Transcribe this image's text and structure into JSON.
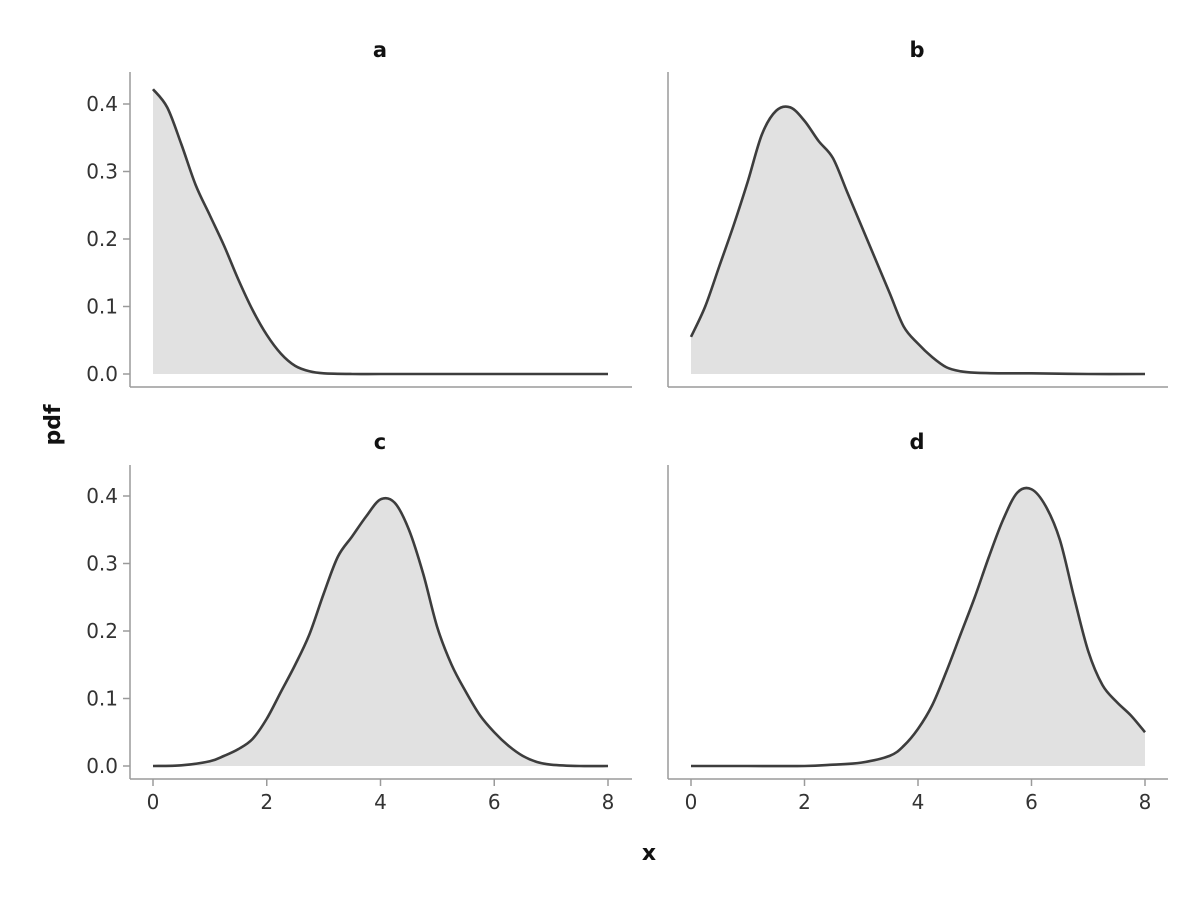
{
  "chart_data": {
    "type": "area",
    "xlabel": "x",
    "ylabel": "pdf",
    "xlim": [
      0,
      8
    ],
    "ylim": [
      0,
      0.43
    ],
    "xticks": [
      0,
      2,
      4,
      6,
      8
    ],
    "yticks": [
      0.0,
      0.1,
      0.2,
      0.3,
      0.4
    ],
    "ytick_labels": [
      "0.0",
      "0.1",
      "0.2",
      "0.3",
      "0.4"
    ],
    "grid": false,
    "fill_color": "#e1e1e1",
    "line_color": "#3d3d3d",
    "panels": [
      {
        "title": "a",
        "x": [
          0,
          0.25,
          0.5,
          0.75,
          1.0,
          1.25,
          1.5,
          1.75,
          2.0,
          2.25,
          2.5,
          2.75,
          3.0,
          3.5,
          4.0,
          5.0,
          6.0,
          7.0,
          8.0
        ],
        "y": [
          0.422,
          0.395,
          0.34,
          0.28,
          0.235,
          0.19,
          0.14,
          0.095,
          0.058,
          0.03,
          0.012,
          0.004,
          0.001,
          0.0,
          0.0,
          0.0,
          0.0,
          0.0,
          0.0
        ]
      },
      {
        "title": "b",
        "x": [
          0,
          0.25,
          0.5,
          0.75,
          1.0,
          1.25,
          1.5,
          1.75,
          2.0,
          2.25,
          2.5,
          2.75,
          3.0,
          3.25,
          3.5,
          3.75,
          4.0,
          4.25,
          4.5,
          4.75,
          5.0,
          5.5,
          6.0,
          7.0,
          8.0
        ],
        "y": [
          0.055,
          0.1,
          0.16,
          0.22,
          0.285,
          0.355,
          0.39,
          0.395,
          0.375,
          0.345,
          0.32,
          0.27,
          0.22,
          0.17,
          0.12,
          0.07,
          0.045,
          0.025,
          0.01,
          0.004,
          0.002,
          0.001,
          0.001,
          0.0,
          0.0
        ]
      },
      {
        "title": "c",
        "x": [
          0,
          0.5,
          1.0,
          1.25,
          1.5,
          1.75,
          2.0,
          2.25,
          2.5,
          2.75,
          3.0,
          3.25,
          3.5,
          3.75,
          4.0,
          4.25,
          4.5,
          4.75,
          5.0,
          5.25,
          5.5,
          5.75,
          6.0,
          6.25,
          6.5,
          6.75,
          7.0,
          7.5,
          8.0
        ],
        "y": [
          0.0,
          0.001,
          0.007,
          0.015,
          0.025,
          0.04,
          0.07,
          0.11,
          0.15,
          0.195,
          0.255,
          0.31,
          0.34,
          0.37,
          0.395,
          0.39,
          0.35,
          0.285,
          0.205,
          0.15,
          0.11,
          0.075,
          0.05,
          0.03,
          0.015,
          0.006,
          0.002,
          0.0,
          0.0
        ]
      },
      {
        "title": "d",
        "x": [
          0,
          1.0,
          2.0,
          2.5,
          3.0,
          3.5,
          3.75,
          4.0,
          4.25,
          4.5,
          4.75,
          5.0,
          5.25,
          5.5,
          5.75,
          6.0,
          6.25,
          6.5,
          6.75,
          7.0,
          7.25,
          7.5,
          7.75,
          8.0
        ],
        "y": [
          0.0,
          0.0,
          0.0,
          0.002,
          0.005,
          0.015,
          0.03,
          0.055,
          0.09,
          0.14,
          0.195,
          0.25,
          0.31,
          0.365,
          0.405,
          0.41,
          0.385,
          0.335,
          0.25,
          0.17,
          0.12,
          0.095,
          0.075,
          0.05
        ]
      }
    ]
  }
}
